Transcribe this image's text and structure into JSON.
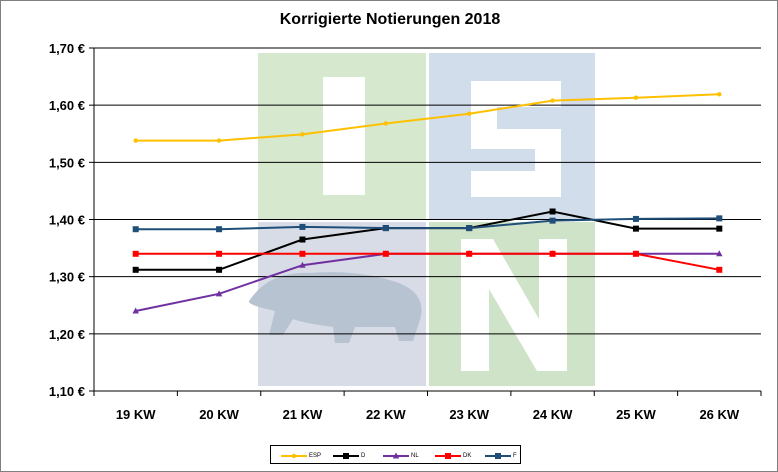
{
  "chart_data": {
    "type": "line",
    "title": "Korrigierte Notierungen 2018",
    "xlabel": "",
    "ylabel": "",
    "categories": [
      "19 KW",
      "20 KW",
      "21 KW",
      "22 KW",
      "23 KW",
      "24 KW",
      "25 KW",
      "26 KW"
    ],
    "ylim": [
      1.1,
      1.7
    ],
    "yticks": [
      "1,70 €",
      "1,60 €",
      "1,50 €",
      "1,40 €",
      "1,30 €",
      "1,20 €",
      "1,10 €"
    ],
    "ytick_values": [
      1.7,
      1.6,
      1.5,
      1.4,
      1.3,
      1.2,
      1.1
    ],
    "grid": "horizontal",
    "legend_position": "bottom",
    "series": [
      {
        "name": "ESP",
        "color": "#FFC000",
        "marker": "circle",
        "values": [
          1.538,
          1.538,
          1.549,
          1.568,
          1.585,
          1.608,
          1.613,
          1.619
        ]
      },
      {
        "name": "D",
        "color": "#000000",
        "marker": "square",
        "values": [
          1.312,
          1.312,
          1.365,
          1.385,
          1.385,
          1.414,
          1.384,
          1.384
        ]
      },
      {
        "name": "NL",
        "color": "#7030A0",
        "marker": "triangle",
        "values": [
          1.24,
          1.27,
          1.32,
          1.34,
          1.34,
          1.34,
          1.34,
          1.34
        ]
      },
      {
        "name": "DK",
        "color": "#FF0000",
        "marker": "square",
        "values": [
          1.34,
          1.34,
          1.34,
          1.34,
          1.34,
          1.34,
          1.34,
          1.312
        ]
      },
      {
        "name": "F",
        "color": "#1F4E79",
        "marker": "square",
        "values": [
          1.383,
          1.383,
          1.387,
          1.385,
          1.385,
          1.398,
          1.401,
          1.402
        ]
      }
    ],
    "watermark": {
      "text": "ISN",
      "colors": [
        "#C8E0C0",
        "#C5D3E6"
      ]
    }
  }
}
